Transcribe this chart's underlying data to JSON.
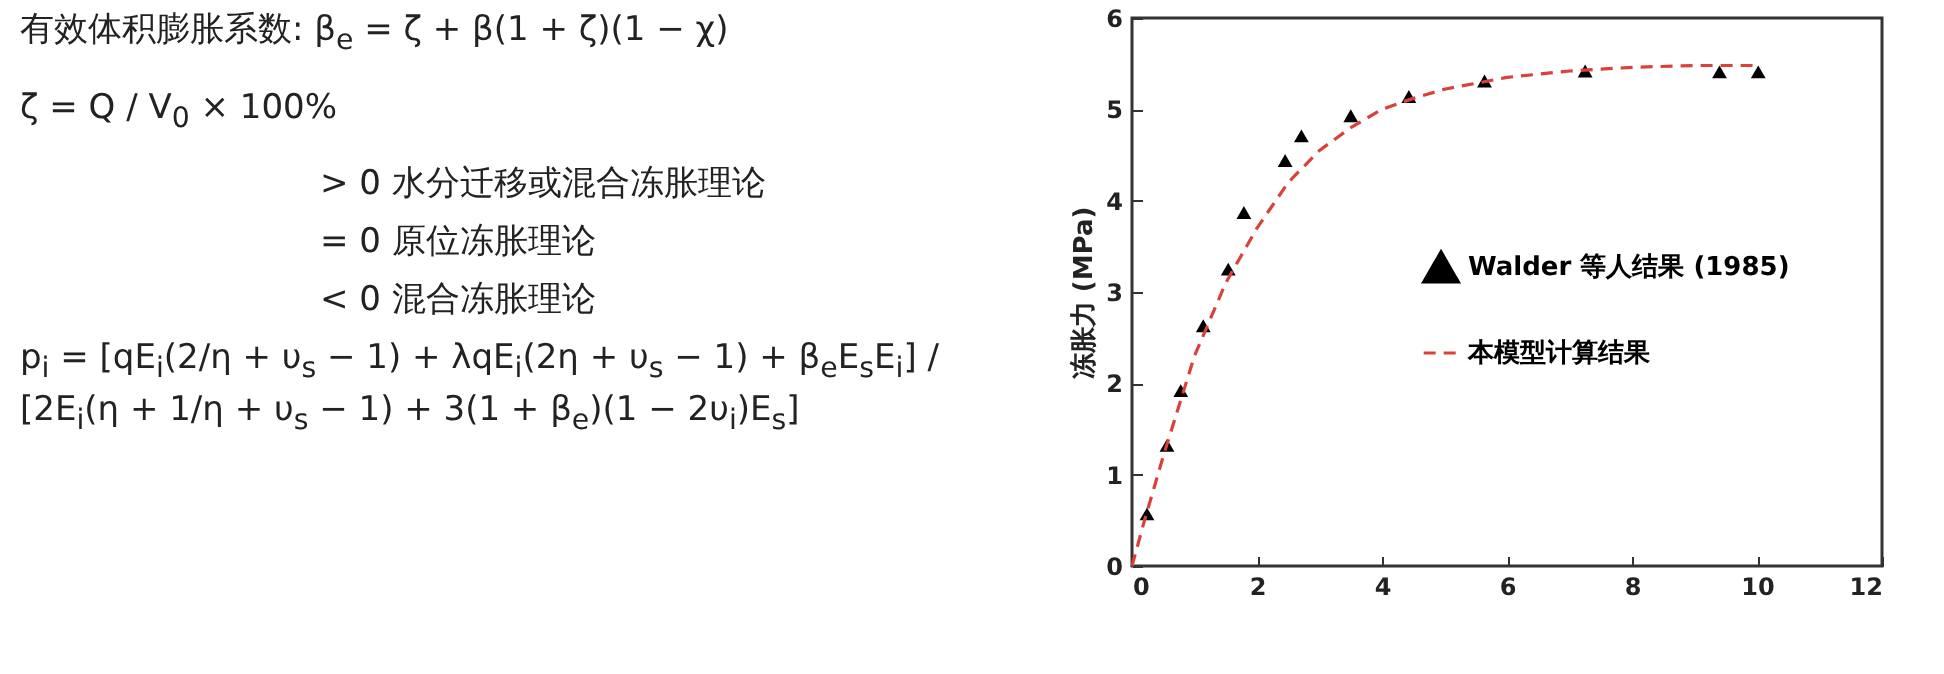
{
  "chart_data": {
    "type": "scatter",
    "xlim": [
      0,
      12
    ],
    "xticks": [
      0,
      2,
      4,
      6,
      8,
      10,
      12
    ],
    "ylim": [
      0,
      6
    ],
    "yticks": [
      0,
      1,
      2,
      3,
      4,
      5,
      6
    ],
    "ylabel": "冻胀力 (MPa)",
    "grid": false,
    "legend": "right",
    "annotations": [
      "有效体积膨胀系数:   β$_{e}$ = ζ + β(1 + ζ)(1 − χ)",
      "ζ = Q / V$_{0}$ × 100%",
      "> 0   水分迁移或混合冻胀理论",
      "= 0   原位冻胀理论",
      "< 0   混合冻胀理论",
      "p$_{i}$ = [qE$_{i}$(2/η + υ$_{s}$ − 1) + λqE$_{i}$(2η + υ$_{s}$ − 1) + β$_{e}$E$_{s}$E$_{i}$] / [2E$_{i}$(η + 1/η + υ$_{s}$ − 1) + 3(1 + β$_{e}$)(1 − 2υ$_{i}$)E$_{s}$]"
    ],
    "series": [
      {
        "name": "Walder 等人结果 (1985)",
        "color": "#000000",
        "marker": "triangle",
        "x": [
          0.24,
          0.56,
          0.78,
          1.14,
          1.54,
          1.79,
          2.45,
          2.71,
          3.5,
          4.43,
          5.64,
          7.25,
          9.4,
          10.02
        ],
        "values": [
          0.57,
          1.32,
          1.92,
          2.63,
          3.25,
          3.87,
          4.44,
          4.71,
          4.93,
          5.14,
          5.31,
          5.42,
          5.41,
          5.41
        ]
      },
      {
        "name": "本模型计算结果",
        "type": "line",
        "color": "#d9413b",
        "line_style": "dashed",
        "marker": "none",
        "x": [
          0,
          0.2,
          0.5,
          1,
          1.5,
          2,
          2.5,
          3,
          3.5,
          4,
          4.5,
          5,
          6,
          7,
          8,
          9,
          10
        ],
        "values": [
          0,
          0.5,
          1.2,
          2.3,
          3.1,
          3.7,
          4.2,
          4.55,
          4.8,
          5.0,
          5.12,
          5.22,
          5.35,
          5.42,
          5.46,
          5.48,
          5.48
        ]
      }
    ]
  }
}
